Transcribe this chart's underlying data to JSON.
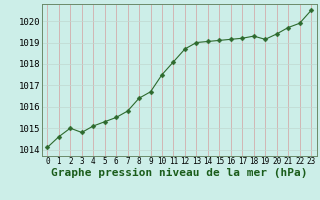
{
  "x": [
    0,
    1,
    2,
    3,
    4,
    5,
    6,
    7,
    8,
    9,
    10,
    11,
    12,
    13,
    14,
    15,
    16,
    17,
    18,
    19,
    20,
    21,
    22,
    23
  ],
  "y": [
    1014.1,
    1014.6,
    1015.0,
    1014.8,
    1015.1,
    1015.3,
    1015.5,
    1015.8,
    1016.4,
    1016.7,
    1017.5,
    1018.1,
    1018.7,
    1019.0,
    1019.05,
    1019.1,
    1019.15,
    1019.2,
    1019.3,
    1019.15,
    1019.4,
    1019.7,
    1019.9,
    1020.5
  ],
  "line_color": "#2d6a2d",
  "marker_color": "#2d6a2d",
  "bg_color": "#cceee8",
  "grid_color_v": "#d4a0a0",
  "grid_color_h": "#c0d8d0",
  "border_color": "#6a8a6a",
  "xlabel": "Graphe pression niveau de la mer (hPa)",
  "xlabel_color": "#1a5c1a",
  "ylim": [
    1013.7,
    1020.8
  ],
  "xlim": [
    -0.5,
    23.5
  ],
  "yticks": [
    1014,
    1015,
    1016,
    1017,
    1018,
    1019,
    1020
  ],
  "xticks": [
    0,
    1,
    2,
    3,
    4,
    5,
    6,
    7,
    8,
    9,
    10,
    11,
    12,
    13,
    14,
    15,
    16,
    17,
    18,
    19,
    20,
    21,
    22,
    23
  ],
  "xtick_labels": [
    "0",
    "1",
    "2",
    "3",
    "4",
    "5",
    "6",
    "7",
    "8",
    "9",
    "10",
    "11",
    "12",
    "13",
    "14",
    "15",
    "16",
    "17",
    "18",
    "19",
    "20",
    "21",
    "22",
    "23"
  ],
  "ytick_fontsize": 6.5,
  "xtick_fontsize": 5.5,
  "xlabel_fontsize": 8,
  "marker_size": 2.5,
  "line_width": 0.8
}
